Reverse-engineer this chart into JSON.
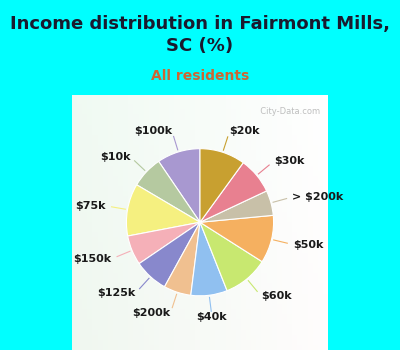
{
  "title": "Income distribution in Fairmont Mills,\nSC (%)",
  "subtitle": "All residents",
  "labels": [
    "$100k",
    "$10k",
    "$75k",
    "$150k",
    "$125k",
    "$200k",
    "$40k",
    "$60k",
    "$50k",
    "> $200k",
    "$30k",
    "$20k"
  ],
  "values": [
    9.5,
    7.0,
    11.5,
    6.5,
    7.5,
    6.0,
    8.0,
    10.0,
    10.5,
    5.5,
    8.0,
    10.0
  ],
  "colors": [
    "#a898d0",
    "#b5c9a0",
    "#f5f080",
    "#f5b0b8",
    "#8888cc",
    "#f0c090",
    "#90c0f0",
    "#c8e870",
    "#f5b060",
    "#c8c0a8",
    "#e88090",
    "#c8a030"
  ],
  "background_top": "#00ffff",
  "background_chart_color": "#d8f0e0",
  "startangle": 90,
  "title_fontsize": 13,
  "subtitle_fontsize": 10,
  "label_fontsize": 8,
  "watermark": "  City-Data.com"
}
